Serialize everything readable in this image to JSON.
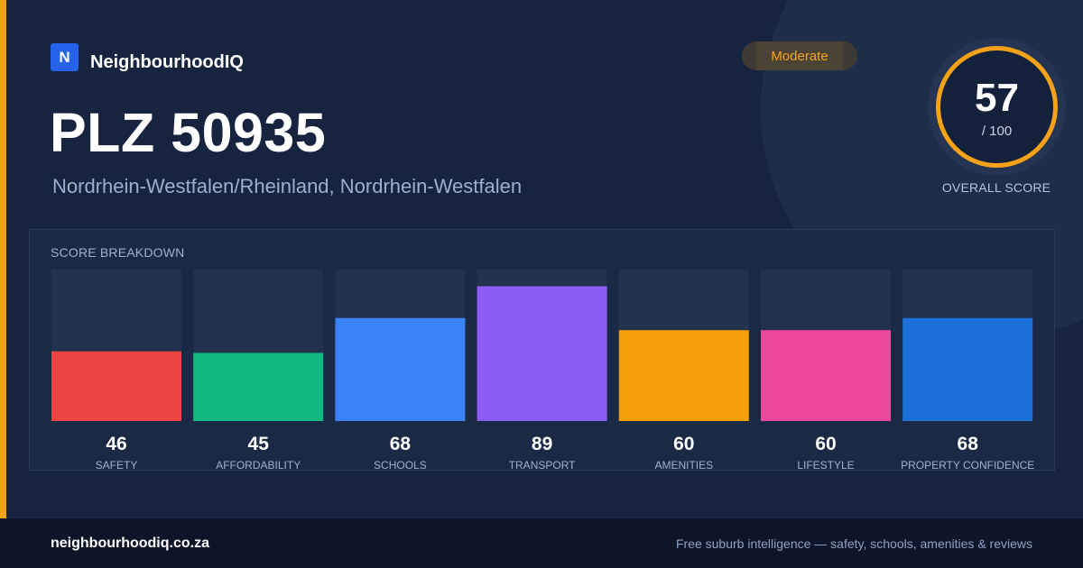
{
  "brand": {
    "logo_letter": "N",
    "name": "NeighbourhoodIQ",
    "logo_color": "#2563eb"
  },
  "header": {
    "title": "PLZ 50935",
    "subtitle": "Nordrhein-Westfalen/Rheinland, Nordrhein-Westfalen"
  },
  "badge": {
    "label": "Moderate",
    "color": "#f5a218"
  },
  "overall": {
    "value": "57",
    "max_label": "/ 100",
    "label": "OVERALL SCORE",
    "max": 100,
    "ring_color": "#f5a218"
  },
  "breakdown": {
    "title": "SCORE BREAKDOWN"
  },
  "chart_data": {
    "type": "bar",
    "categories": [
      "SAFETY",
      "AFFORDABILITY",
      "SCHOOLS",
      "TRANSPORT",
      "AMENITIES",
      "LIFESTYLE",
      "PROPERTY CONFIDENCE"
    ],
    "values": [
      46,
      45,
      68,
      89,
      60,
      60,
      68
    ],
    "colors": [
      "#ef4444",
      "#10b981",
      "#3b82f6",
      "#8b5cf6",
      "#f59e0b",
      "#ec4899",
      "#1d6fd9"
    ],
    "ylim": [
      0,
      100
    ],
    "title": "SCORE BREAKDOWN",
    "xlabel": "",
    "ylabel": ""
  },
  "footer": {
    "url": "neighbourhoodiq.co.za",
    "tagline": "Free suburb intelligence — safety, schools, amenities & reviews"
  },
  "colors": {
    "background": "#162440",
    "accent": "#f5a218",
    "track": "#22314d"
  }
}
